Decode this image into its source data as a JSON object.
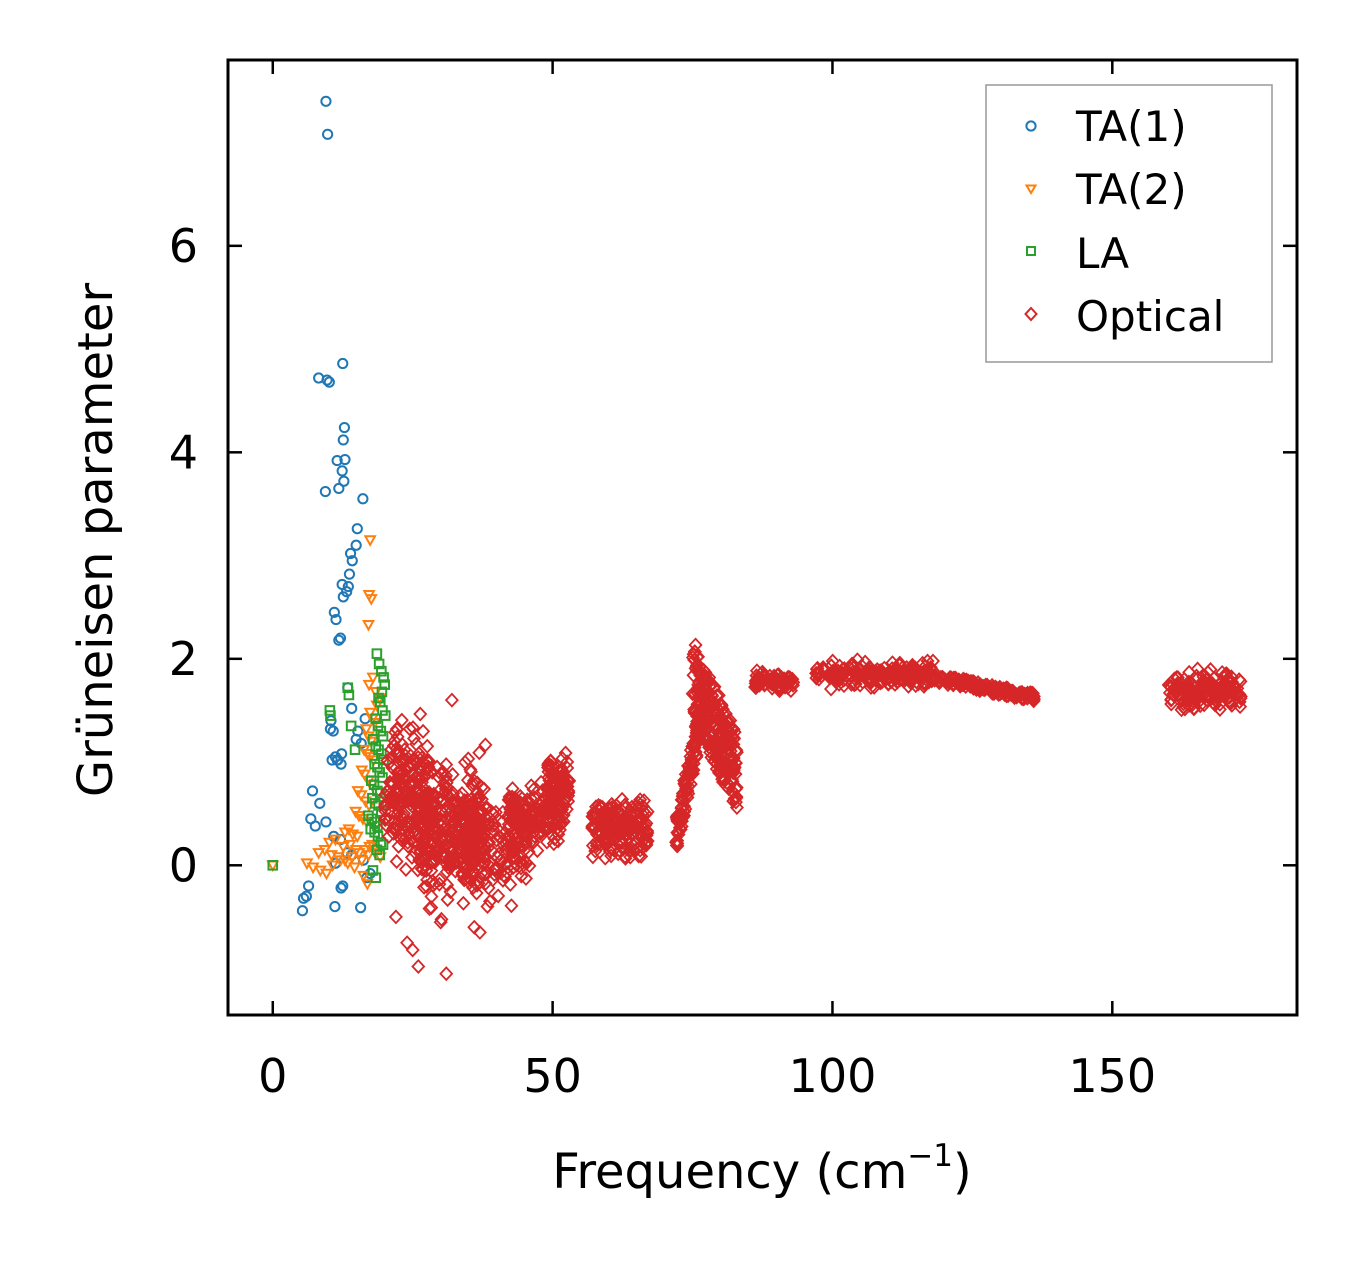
{
  "chart_data": {
    "type": "scatter",
    "title": "",
    "xlabel": "Frequency (cm",
    "xlabel_superscript": "−1",
    "xlabel_suffix": ")",
    "ylabel": "Grüneisen parameter",
    "xlim": [
      -8,
      183
    ],
    "ylim": [
      -1.45,
      7.8
    ],
    "xticks": [
      0,
      50,
      100,
      150
    ],
    "yticks": [
      0,
      2,
      4,
      6
    ],
    "legend_position": "top-right",
    "series": [
      {
        "name": "TA(1)",
        "marker": "circle",
        "color": "#1f77b4",
        "x": [
          9.5,
          9.8,
          8.2,
          9.7,
          10.1,
          12.5,
          12.8,
          12.6,
          11.5,
          12.9,
          12.4,
          12.7,
          9.4,
          11.8,
          16.1,
          15.1,
          14.9,
          13.9,
          14.2,
          13.7,
          12.4,
          13.5,
          12.6,
          13.2,
          11,
          11.3,
          11.8,
          12.1,
          13.4,
          14.1,
          15.2,
          14.9,
          16.5,
          15.8,
          11.2,
          11.6,
          12.2,
          10.6,
          11.5,
          12.3,
          10.3,
          10.4,
          10.8,
          7.1,
          6.8,
          7.6,
          8.4,
          9.5,
          10.9,
          12.1,
          13.3,
          14.1,
          11.2,
          12.5,
          6.4,
          6,
          5.5,
          5.3,
          11.1,
          12.2,
          15.7,
          17.4,
          16.8,
          16.2
        ],
        "y": [
          7.4,
          7.08,
          4.72,
          4.7,
          4.68,
          4.86,
          4.24,
          4.12,
          3.92,
          3.93,
          3.82,
          3.72,
          3.62,
          3.65,
          3.55,
          3.26,
          3.1,
          3.02,
          2.95,
          2.82,
          2.72,
          2.7,
          2.6,
          2.65,
          2.45,
          2.38,
          2.18,
          2.2,
          1.72,
          1.52,
          1.3,
          1.22,
          1.42,
          1.18,
          1.05,
          1.02,
          0.98,
          1.02,
          1.02,
          1.08,
          1.32,
          1.4,
          1.3,
          0.72,
          0.45,
          0.38,
          0.6,
          0.42,
          0.28,
          0.25,
          0.12,
          0.1,
          0.02,
          -0.2,
          -0.2,
          -0.3,
          -0.32,
          -0.44,
          -0.4,
          -0.22,
          -0.41,
          -0.08,
          -0.12,
          0.05
        ]
      },
      {
        "name": "TA(2)",
        "marker": "triangle-down",
        "color": "#ff7f0e",
        "x": [
          17.4,
          17.2,
          17.6,
          17.1,
          17.2,
          17.9,
          18.4,
          18.6,
          19.1,
          17.4,
          17.8,
          18.2,
          16.7,
          17.1,
          17.6,
          16.3,
          16.9,
          17.4,
          18,
          15.9,
          16.4,
          17.1,
          17.7,
          15.2,
          15.8,
          16.6,
          17.2,
          14.8,
          15.4,
          16.1,
          16.8,
          12.9,
          13.6,
          14.3,
          15.1,
          10.1,
          11.2,
          12.6,
          13.8,
          14.9,
          8.2,
          9.3,
          10.5,
          11.7,
          12.9,
          14.2,
          15.4,
          16.5,
          17.3,
          17.8,
          6.1,
          7.2,
          8.5,
          9.6,
          10.7,
          12.1,
          13.4,
          14.6,
          15.9,
          17.1,
          18.3,
          19.2,
          16.2,
          16.9
        ],
        "y": [
          3.15,
          2.62,
          2.58,
          2.33,
          1.75,
          1.82,
          1.68,
          1.55,
          1.62,
          1.48,
          1.42,
          1.38,
          1.32,
          1.25,
          1.2,
          1.12,
          1.08,
          1.05,
          1.02,
          0.92,
          0.88,
          0.82,
          0.78,
          0.72,
          0.68,
          0.62,
          0.58,
          0.52,
          0.48,
          0.45,
          0.42,
          0.32,
          0.35,
          0.3,
          0.28,
          0.22,
          0.25,
          0.18,
          0.2,
          0.15,
          0.12,
          0.15,
          0.1,
          0.08,
          0.05,
          0.08,
          0.12,
          0.15,
          0.18,
          0.2,
          0.02,
          -0.02,
          -0.05,
          -0.08,
          0,
          0.05,
          0.02,
          -0.02,
          0.05,
          0.1,
          0.12,
          0.08,
          -0.1,
          -0.18
        ],
        "x_extra": [
          0
        ]
      },
      {
        "name": "LA",
        "marker": "square",
        "color": "#2ca02c",
        "x": [
          0,
          10.2,
          10.3,
          13.4,
          13.6,
          14,
          14.7,
          18.6,
          19,
          19.4,
          19.8,
          20,
          19.5,
          18.9,
          19.2,
          19.6,
          20.1,
          18.4,
          18.8,
          19.3,
          19.7,
          17.9,
          18.4,
          18.9,
          19.4,
          19.8,
          18.2,
          18.7,
          19.1,
          19.6,
          17.6,
          18.1,
          18.7,
          19.2,
          17.8,
          18.3,
          18.9,
          19.4,
          17.1,
          17.7,
          18.2,
          18.7,
          17.5,
          18.2,
          18.8,
          19.3,
          19.7,
          18.6,
          19.1,
          17.9,
          18.4
        ],
        "y": [
          0,
          1.5,
          1.45,
          1.72,
          1.65,
          1.35,
          1.12,
          2.05,
          1.95,
          1.88,
          1.82,
          1.75,
          1.68,
          1.62,
          1.58,
          1.5,
          1.45,
          1.42,
          1.35,
          1.3,
          1.25,
          1.22,
          1.15,
          1.12,
          1.08,
          1.02,
          0.98,
          0.95,
          0.9,
          0.85,
          0.82,
          0.78,
          0.72,
          0.7,
          0.65,
          0.6,
          0.58,
          0.52,
          0.48,
          0.45,
          0.42,
          0.38,
          0.35,
          0.32,
          0.28,
          0.22,
          0.2,
          0.15,
          0.1,
          -0.05,
          -0.12
        ]
      },
      {
        "name": "Optical",
        "marker": "diamond",
        "color": "#d62728",
        "clusters": [
          {
            "x": [
              20,
              28
            ],
            "y": [
              -0.3,
              1.6
            ],
            "n": 220
          },
          {
            "x": [
              26,
              38
            ],
            "y": [
              -0.6,
              1.3
            ],
            "n": 320
          },
          {
            "x": [
              34,
              46
            ],
            "y": [
              -0.5,
              0.9
            ],
            "n": 180
          },
          {
            "x": [
              42,
              52
            ],
            "y": [
              0.1,
              0.9
            ],
            "n": 160
          },
          {
            "x": [
              49,
              53
            ],
            "y": [
              0.4,
              1.15
            ],
            "n": 90
          },
          {
            "x": [
              57,
              67
            ],
            "y": [
              -0.05,
              0.75
            ],
            "n": 200
          },
          {
            "x": [
              72,
              77
            ],
            "y": [
              0.1,
              1.5
            ],
            "n": 130
          },
          {
            "x": [
              75,
              83
            ],
            "y": [
              0.5,
              2.2
            ],
            "n": 260
          },
          {
            "x": [
              86,
              93
            ],
            "y": [
              1.65,
              1.92
            ],
            "n": 80
          },
          {
            "x": [
              97,
              118
            ],
            "y": [
              1.68,
              2.02
            ],
            "n": 220
          },
          {
            "x": [
              118,
              136
            ],
            "y": [
              1.58,
              1.82
            ],
            "n": 180
          },
          {
            "x": [
              160,
              173
            ],
            "y": [
              1.42,
              1.95
            ],
            "n": 170
          }
        ],
        "x": [
          31,
          26,
          25,
          32,
          24,
          37,
          36,
          22,
          30,
          28
        ],
        "y": [
          -1.05,
          -0.98,
          -0.82,
          1.6,
          -0.75,
          -0.65,
          -0.6,
          -0.5,
          -0.55,
          -0.42
        ]
      }
    ]
  }
}
